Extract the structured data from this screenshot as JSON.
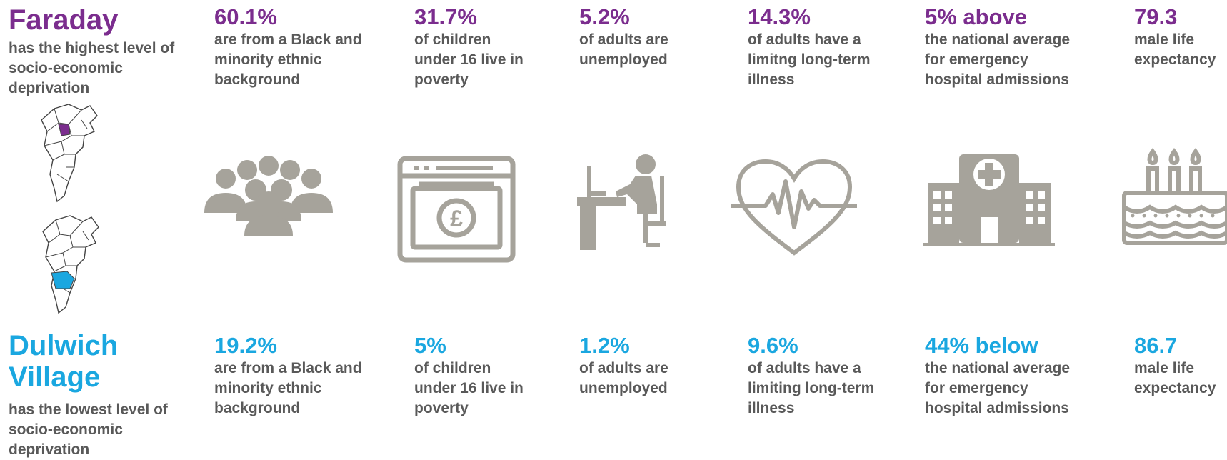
{
  "colors": {
    "top_accent": "#7b2d8e",
    "bottom_accent": "#1aa7e0",
    "text": "#595959",
    "icon": "#a6a39b"
  },
  "top": {
    "ward": "Faraday",
    "description": "has the highest level of socio-economic deprivation",
    "stats": [
      {
        "value": "60.1%",
        "text": "are from a Black and minority ethnic background"
      },
      {
        "value": "31.7%",
        "text": "of children under 16 live in poverty"
      },
      {
        "value": "5.2%",
        "text": "of adults are unemployed"
      },
      {
        "value": "14.3%",
        "text": "of adults have a limitng long-term illness"
      },
      {
        "value": "5% above",
        "text": "the national average for emergency hospital admissions"
      },
      {
        "value": "79.3",
        "text": "male life expectancy"
      }
    ]
  },
  "bottom": {
    "ward": "Dulwich Village",
    "description": "has the lowest level of socio-economic deprivation",
    "stats": [
      {
        "value": "19.2%",
        "text": "are from a Black and minority ethnic background"
      },
      {
        "value": "5%",
        "text": "of children under 16 live in poverty"
      },
      {
        "value": "1.2%",
        "text": "of adults are unemployed"
      },
      {
        "value": "9.6%",
        "text": "of adults have a limiting long-term illness"
      },
      {
        "value": "44% below",
        "text": "the national average for emergency hospital admissions"
      },
      {
        "value": "86.7",
        "text": "male life expectancy"
      }
    ]
  },
  "icons": [
    "map-icon",
    "people-icon",
    "banknote-icon",
    "office-worker-icon",
    "heartbeat-icon",
    "hospital-icon",
    "birthday-cake-icon"
  ]
}
